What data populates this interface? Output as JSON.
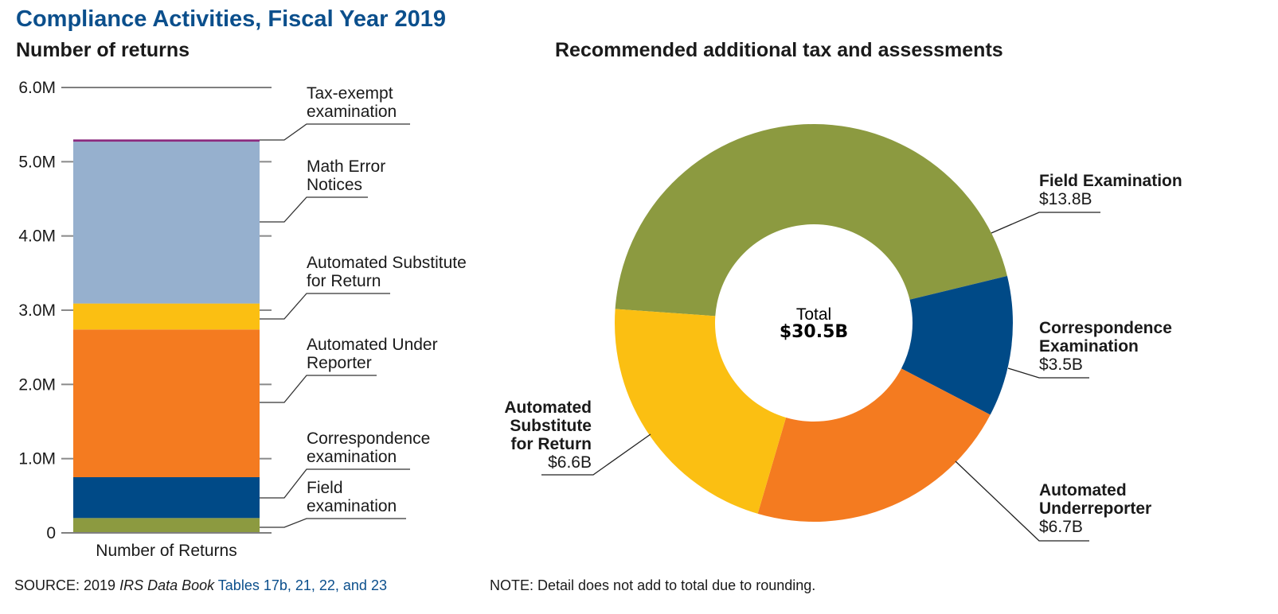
{
  "header": {
    "title": "Compliance Activities, Fiscal Year 2019"
  },
  "footer": {
    "source_prefix": "SOURCE: 2019 ",
    "source_publication": "IRS Data Book",
    "source_link": " Tables 17b, 21, 22, and 23",
    "note": "NOTE: Detail does not add to total due to rounding."
  },
  "colors": {
    "title": "#0b4f8c",
    "field": "#8c9a40",
    "correspondence": "#004a87",
    "aur": "#f47b20",
    "asfr": "#fbbf12",
    "math_error": "#96b0ce",
    "tax_exempt": "#8a2a7e",
    "axis": "#7f7f7f"
  },
  "chart_data": [
    {
      "type": "bar",
      "stacked": true,
      "title": "Number of returns",
      "xlabel": "",
      "ylabel": "",
      "categories": [
        "Number of Returns"
      ],
      "ylim": [
        0,
        6000000
      ],
      "yticks": [
        0,
        1000000,
        2000000,
        3000000,
        4000000,
        5000000,
        6000000
      ],
      "ytick_labels": [
        "0",
        "1.0M",
        "2.0M",
        "3.0M",
        "4.0M",
        "5.0M",
        "6.0M"
      ],
      "grid": false,
      "series": [
        {
          "name": "Field examination",
          "label_lines": [
            "Field",
            "examination"
          ],
          "values": [
            200000
          ],
          "color_key": "field"
        },
        {
          "name": "Correspondence examination",
          "label_lines": [
            "Correspondence",
            "examination"
          ],
          "values": [
            550000
          ],
          "color_key": "correspondence"
        },
        {
          "name": "Automated Under Reporter",
          "label_lines": [
            "Automated Under",
            "Reporter"
          ],
          "values": [
            1990000
          ],
          "color_key": "aur"
        },
        {
          "name": "Automated Substitute for Return",
          "label_lines": [
            "Automated Substitute",
            "for Return"
          ],
          "values": [
            350000
          ],
          "color_key": "asfr"
        },
        {
          "name": "Math Error Notices",
          "label_lines": [
            "Math Error",
            "Notices"
          ],
          "values": [
            2180000
          ],
          "color_key": "math_error"
        },
        {
          "name": "Tax-exempt examination",
          "label_lines": [
            "Tax-exempt",
            "examination"
          ],
          "values": [
            30000
          ],
          "color_key": "tax_exempt"
        }
      ],
      "legend": "right (leader-line labels)"
    },
    {
      "type": "pie",
      "donut": true,
      "title": "Recommended additional tax and assessments",
      "units": "billions of dollars",
      "center_label": "Total",
      "center_value": "$30.5B",
      "total": 30.5,
      "slices": [
        {
          "name": "Field Examination",
          "name_lines": [
            "Field Examination"
          ],
          "value": 13.8,
          "value_label": "$13.8B",
          "color_key": "field"
        },
        {
          "name": "Correspondence Examination",
          "name_lines": [
            "Correspondence",
            "Examination"
          ],
          "value": 3.5,
          "value_label": "$3.5B",
          "color_key": "correspondence"
        },
        {
          "name": "Automated Underreporter",
          "name_lines": [
            "Automated",
            "Underreporter"
          ],
          "value": 6.7,
          "value_label": "$6.7B",
          "color_key": "aur"
        },
        {
          "name": "Automated Substitute for Return",
          "name_lines": [
            "Automated",
            "Substitute",
            "for Return"
          ],
          "value": 6.6,
          "value_label": "$6.6B",
          "color_key": "asfr"
        }
      ],
      "legend": "outside labels with leader lines"
    }
  ]
}
